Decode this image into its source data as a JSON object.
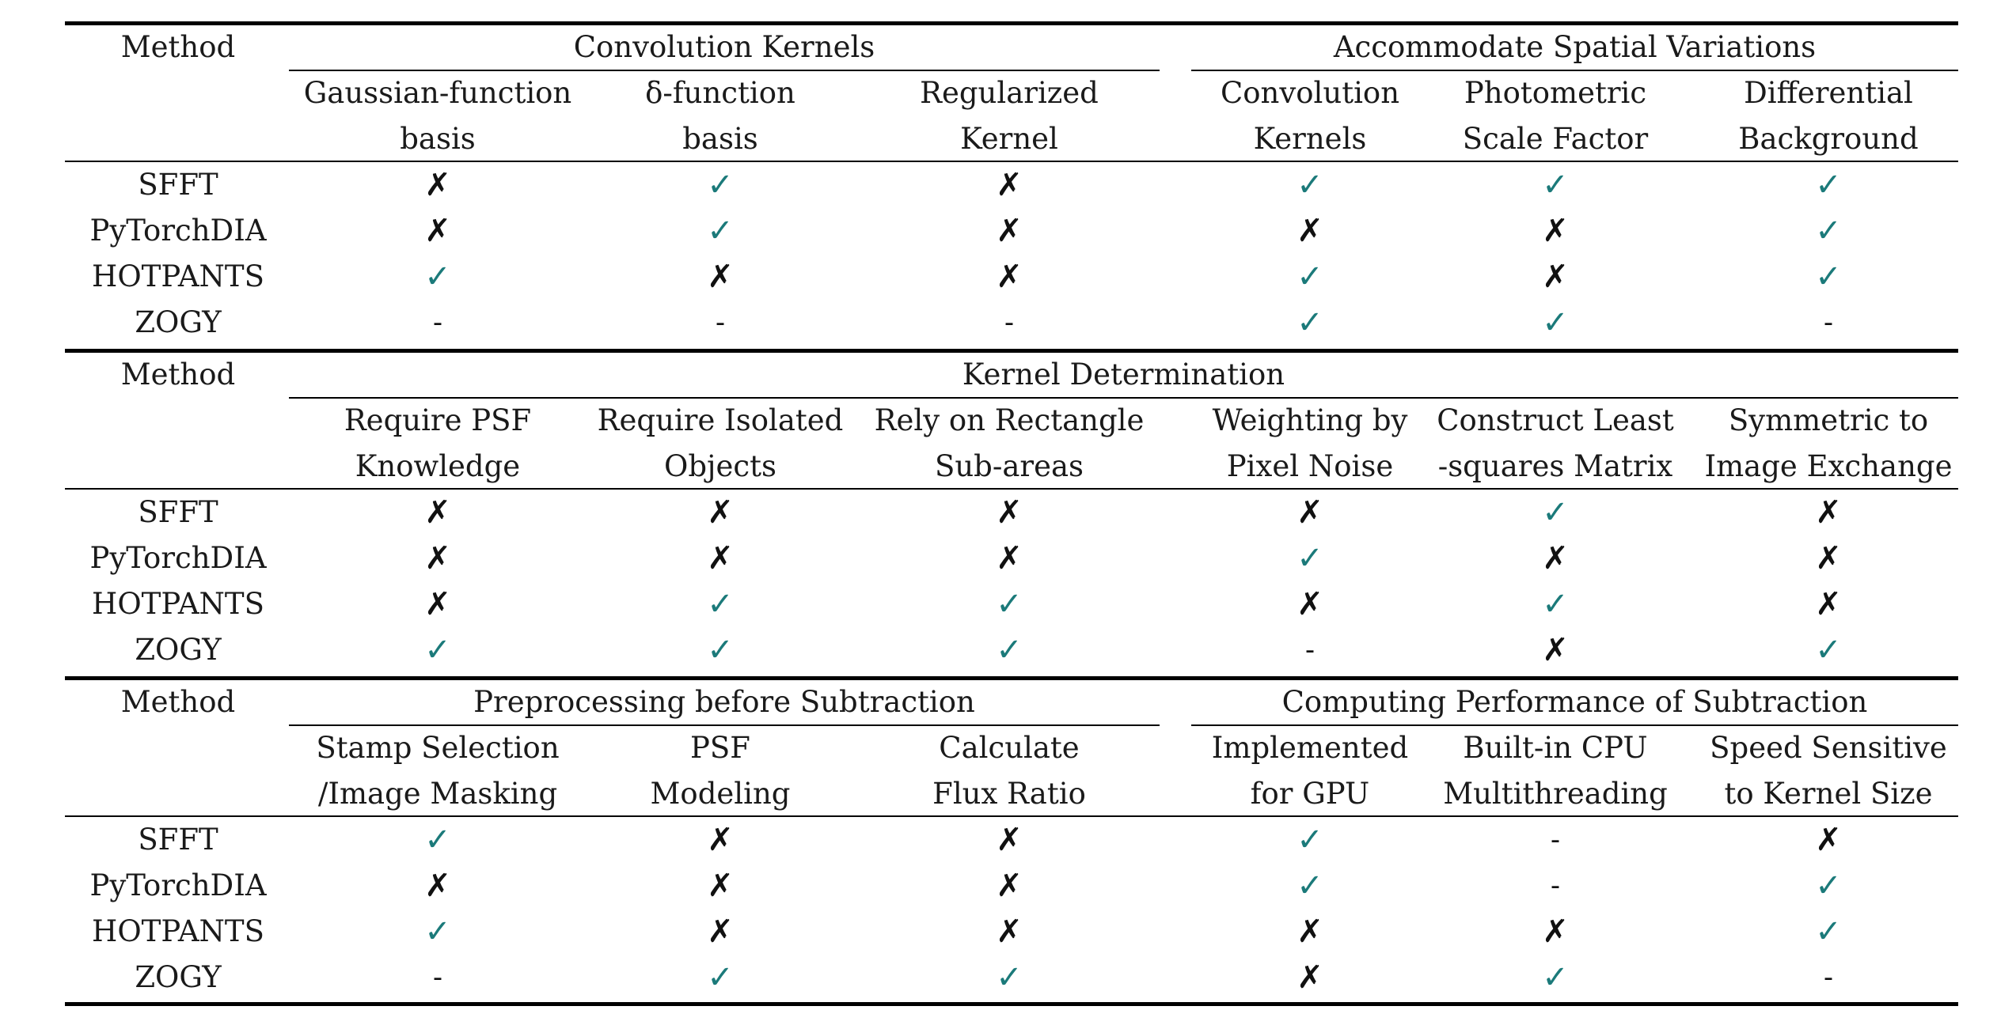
{
  "method_label": "Method",
  "symbols": {
    "check": "✓",
    "cross": "✗",
    "dash": "-",
    "check_color": "#1b7a7a",
    "cross_color": "#111111"
  },
  "methods": [
    "SFFT",
    "PyTorchDIA",
    "HOTPANTS",
    "ZOGY"
  ],
  "sections": [
    {
      "groups": [
        {
          "label": "Convolution Kernels",
          "cols": [
            0,
            2
          ]
        },
        {
          "label": "Accommodate Spatial Variations",
          "cols": [
            3,
            5
          ]
        }
      ],
      "columns": [
        [
          "Gaussian-function",
          "basis"
        ],
        [
          "δ-function",
          "basis"
        ],
        [
          "Regularized",
          "Kernel"
        ],
        [
          "Convolution",
          "Kernels"
        ],
        [
          "Photometric",
          "Scale Factor"
        ],
        [
          "Differential",
          "Background"
        ]
      ],
      "rows": [
        [
          "cross",
          "check",
          "cross",
          "check",
          "check",
          "check"
        ],
        [
          "cross",
          "check",
          "cross",
          "cross",
          "cross",
          "check"
        ],
        [
          "check",
          "cross",
          "cross",
          "check",
          "cross",
          "check"
        ],
        [
          "dash",
          "dash",
          "dash",
          "check",
          "check",
          "dash"
        ]
      ]
    },
    {
      "groups": [
        {
          "label": "Kernel Determination",
          "cols": [
            0,
            5
          ]
        }
      ],
      "columns": [
        [
          "Require PSF",
          "Knowledge"
        ],
        [
          "Require Isolated",
          "Objects"
        ],
        [
          "Rely on Rectangle",
          "Sub-areas"
        ],
        [
          "Weighting by",
          "Pixel Noise"
        ],
        [
          "Construct Least",
          "-squares Matrix"
        ],
        [
          "Symmetric to",
          "Image Exchange"
        ]
      ],
      "rows": [
        [
          "cross",
          "cross",
          "cross",
          "cross",
          "check",
          "cross"
        ],
        [
          "cross",
          "cross",
          "cross",
          "check",
          "cross",
          "cross"
        ],
        [
          "cross",
          "check",
          "check",
          "cross",
          "check",
          "cross"
        ],
        [
          "check",
          "check",
          "check",
          "dash",
          "cross",
          "check"
        ]
      ]
    },
    {
      "groups": [
        {
          "label": "Preprocessing before Subtraction",
          "cols": [
            0,
            2
          ]
        },
        {
          "label": "Computing Performance of Subtraction",
          "cols": [
            3,
            5
          ]
        }
      ],
      "columns": [
        [
          "Stamp Selection",
          "/Image Masking"
        ],
        [
          "PSF",
          "Modeling"
        ],
        [
          "Calculate",
          "Flux Ratio"
        ],
        [
          "Implemented",
          "for GPU"
        ],
        [
          "Built-in CPU",
          "Multithreading"
        ],
        [
          "Speed Sensitive",
          "to Kernel Size"
        ]
      ],
      "rows": [
        [
          "check",
          "cross",
          "cross",
          "check",
          "dash",
          "cross"
        ],
        [
          "cross",
          "cross",
          "cross",
          "check",
          "dash",
          "check"
        ],
        [
          "check",
          "cross",
          "cross",
          "cross",
          "cross",
          "check"
        ],
        [
          "dash",
          "check",
          "check",
          "cross",
          "check",
          "dash"
        ]
      ]
    }
  ]
}
